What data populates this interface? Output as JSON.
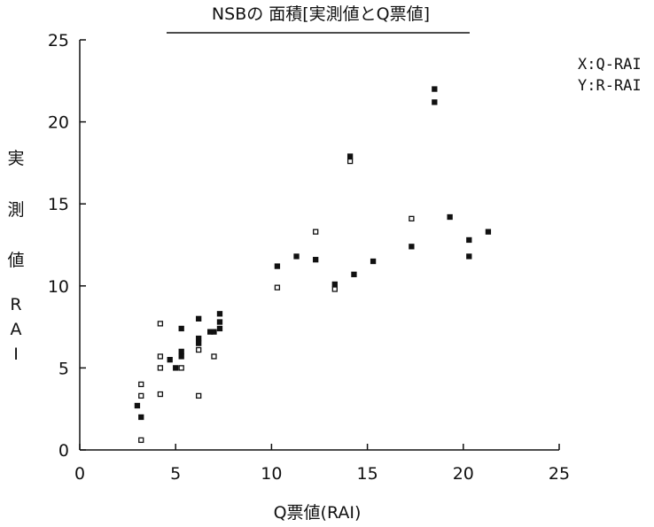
{
  "chart_data": {
    "type": "scatter",
    "title": "NSBの 面積[実測値とQ票値]",
    "xlabel": "Q票値(RAI)",
    "ylabel": "実測値RAI",
    "legend": [
      "X:Q-RAI",
      "Y:R-RAI"
    ],
    "legend_position": "top-right",
    "xlim": [
      0,
      25
    ],
    "ylim": [
      0,
      25
    ],
    "xticks": [
      0,
      5,
      10,
      15,
      20,
      25
    ],
    "yticks": [
      0,
      5,
      10,
      15,
      20,
      25
    ],
    "grid": false,
    "points": [
      {
        "x": 3.0,
        "y": 2.7,
        "filled": true
      },
      {
        "x": 3.2,
        "y": 2.0,
        "filled": true
      },
      {
        "x": 3.2,
        "y": 3.3,
        "filled": false
      },
      {
        "x": 3.2,
        "y": 4.0,
        "filled": false
      },
      {
        "x": 3.2,
        "y": 0.6,
        "filled": false
      },
      {
        "x": 4.2,
        "y": 7.7,
        "filled": false
      },
      {
        "x": 4.2,
        "y": 5.7,
        "filled": false
      },
      {
        "x": 4.2,
        "y": 5.0,
        "filled": false
      },
      {
        "x": 4.2,
        "y": 3.4,
        "filled": false
      },
      {
        "x": 4.7,
        "y": 5.5,
        "filled": true
      },
      {
        "x": 5.0,
        "y": 5.0,
        "filled": true
      },
      {
        "x": 5.3,
        "y": 7.4,
        "filled": true
      },
      {
        "x": 5.3,
        "y": 6.0,
        "filled": true
      },
      {
        "x": 5.3,
        "y": 5.7,
        "filled": true
      },
      {
        "x": 5.3,
        "y": 5.0,
        "filled": false
      },
      {
        "x": 6.2,
        "y": 8.0,
        "filled": true
      },
      {
        "x": 6.2,
        "y": 6.8,
        "filled": true
      },
      {
        "x": 6.2,
        "y": 6.5,
        "filled": true
      },
      {
        "x": 6.2,
        "y": 6.1,
        "filled": false
      },
      {
        "x": 6.2,
        "y": 3.3,
        "filled": false
      },
      {
        "x": 6.8,
        "y": 7.2,
        "filled": true
      },
      {
        "x": 7.0,
        "y": 5.7,
        "filled": false
      },
      {
        "x": 7.0,
        "y": 7.2,
        "filled": true
      },
      {
        "x": 7.3,
        "y": 8.3,
        "filled": true
      },
      {
        "x": 7.3,
        "y": 7.8,
        "filled": true
      },
      {
        "x": 7.3,
        "y": 7.4,
        "filled": true
      },
      {
        "x": 10.3,
        "y": 11.2,
        "filled": true
      },
      {
        "x": 10.3,
        "y": 9.9,
        "filled": false
      },
      {
        "x": 11.3,
        "y": 11.8,
        "filled": true
      },
      {
        "x": 12.3,
        "y": 13.3,
        "filled": false
      },
      {
        "x": 12.3,
        "y": 11.6,
        "filled": true
      },
      {
        "x": 13.3,
        "y": 10.1,
        "filled": true
      },
      {
        "x": 13.3,
        "y": 9.8,
        "filled": false
      },
      {
        "x": 14.1,
        "y": 17.9,
        "filled": true
      },
      {
        "x": 14.1,
        "y": 17.6,
        "filled": false
      },
      {
        "x": 14.3,
        "y": 10.7,
        "filled": true
      },
      {
        "x": 15.3,
        "y": 11.5,
        "filled": true
      },
      {
        "x": 17.3,
        "y": 14.1,
        "filled": false
      },
      {
        "x": 17.3,
        "y": 12.4,
        "filled": true
      },
      {
        "x": 18.5,
        "y": 22.0,
        "filled": true
      },
      {
        "x": 18.5,
        "y": 21.2,
        "filled": true
      },
      {
        "x": 19.3,
        "y": 14.2,
        "filled": true
      },
      {
        "x": 20.3,
        "y": 12.8,
        "filled": true
      },
      {
        "x": 20.3,
        "y": 11.8,
        "filled": true
      },
      {
        "x": 21.3,
        "y": 13.3,
        "filled": true
      }
    ]
  }
}
